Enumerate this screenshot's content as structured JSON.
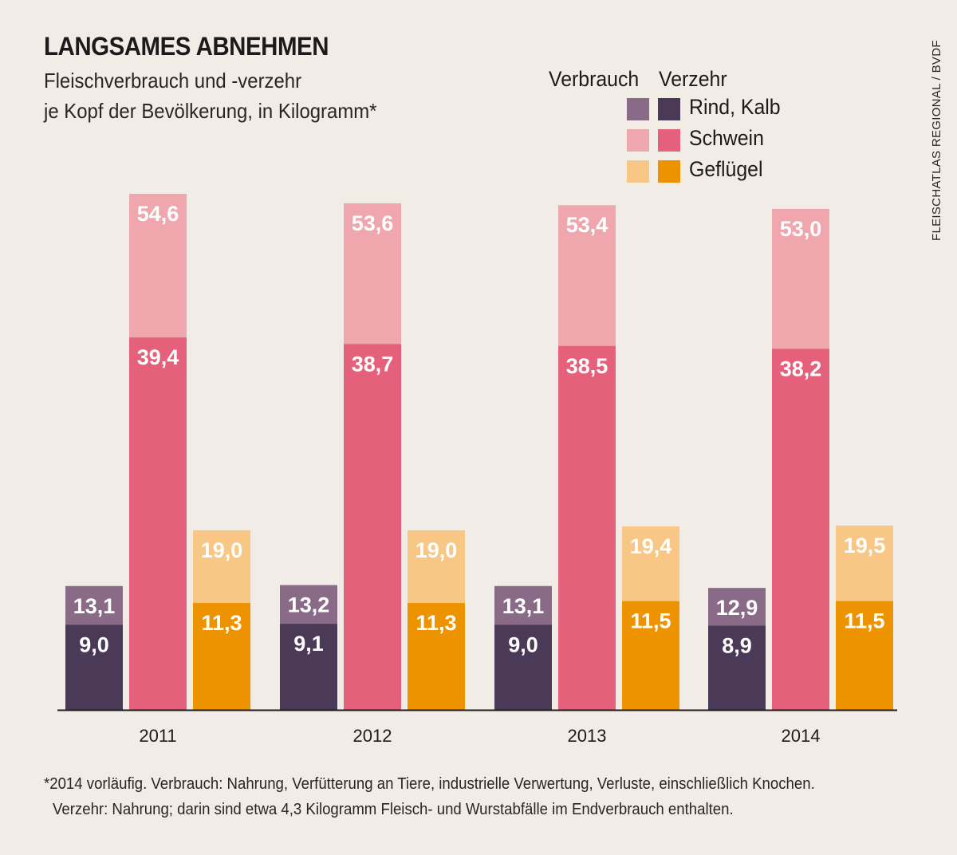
{
  "header": {
    "title": "LANGSAMES ABNEHMEN",
    "subtitle_line1": "Fleischverbrauch und -verzehr",
    "subtitle_line2": "je Kopf der Bevölkerung, in Kilogramm*"
  },
  "legend": {
    "col1": "Verbrauch",
    "col2": "Verzehr",
    "rows": [
      {
        "label": "Rind, Kalb",
        "verbrauch_color": "#8a6b87",
        "verzehr_color": "#4a3957"
      },
      {
        "label": "Schwein",
        "verbrauch_color": "#efa7ad",
        "verzehr_color": "#e5607b"
      },
      {
        "label": "Geflügel",
        "verbrauch_color": "#f8c786",
        "verzehr_color": "#ee9300"
      }
    ]
  },
  "source": "FLEISCHATLAS REGIONAL / BVDF",
  "footnote": {
    "line1": "*2014 vorläufig. Verbrauch: Nahrung, Verfütterung an Tiere, industrielle Verwertung, Verluste, einschließlich Knochen.",
    "line2": "Verzehr: Nahrung; darin sind etwa 4,3 Kilogramm Fleisch- und Wurstabfälle im Endverbrauch enthalten."
  },
  "chart_data": {
    "type": "bar",
    "title": "LANGSAMES ABNEHMEN",
    "categories": [
      "2011",
      "2012",
      "2013",
      "2014"
    ],
    "groups": [
      {
        "name": "Rind, Kalb",
        "verbrauch": [
          13.1,
          13.2,
          13.1,
          12.9
        ],
        "verbrauch_labels": [
          "13,1",
          "13,2",
          "13,1",
          "12,9"
        ],
        "verzehr": [
          9.0,
          9.1,
          9.0,
          8.9
        ],
        "verzehr_labels": [
          "9,0",
          "9,1",
          "9,0",
          "8,9"
        ],
        "verbrauch_color": "#8a6b87",
        "verzehr_color": "#4a3957"
      },
      {
        "name": "Schwein",
        "verbrauch": [
          54.6,
          53.6,
          53.4,
          53.0
        ],
        "verbrauch_labels": [
          "54,6",
          "53,6",
          "53,4",
          "53,0"
        ],
        "verzehr": [
          39.4,
          38.7,
          38.5,
          38.2
        ],
        "verzehr_labels": [
          "39,4",
          "38,7",
          "38,5",
          "38,2"
        ],
        "verbrauch_color": "#efa7ad",
        "verzehr_color": "#e5607b"
      },
      {
        "name": "Geflügel",
        "verbrauch": [
          19.0,
          19.0,
          19.4,
          19.5
        ],
        "verbrauch_labels": [
          "19,0",
          "19,0",
          "19,4",
          "19,5"
        ],
        "verzehr": [
          11.3,
          11.3,
          11.5,
          11.5
        ],
        "verzehr_labels": [
          "11,3",
          "11,3",
          "11,5",
          "11,5"
        ],
        "verbrauch_color": "#f8c786",
        "verzehr_color": "#ee9300"
      }
    ],
    "ylim": [
      0,
      54.6
    ],
    "grid": false,
    "legend_position": "top-right"
  }
}
